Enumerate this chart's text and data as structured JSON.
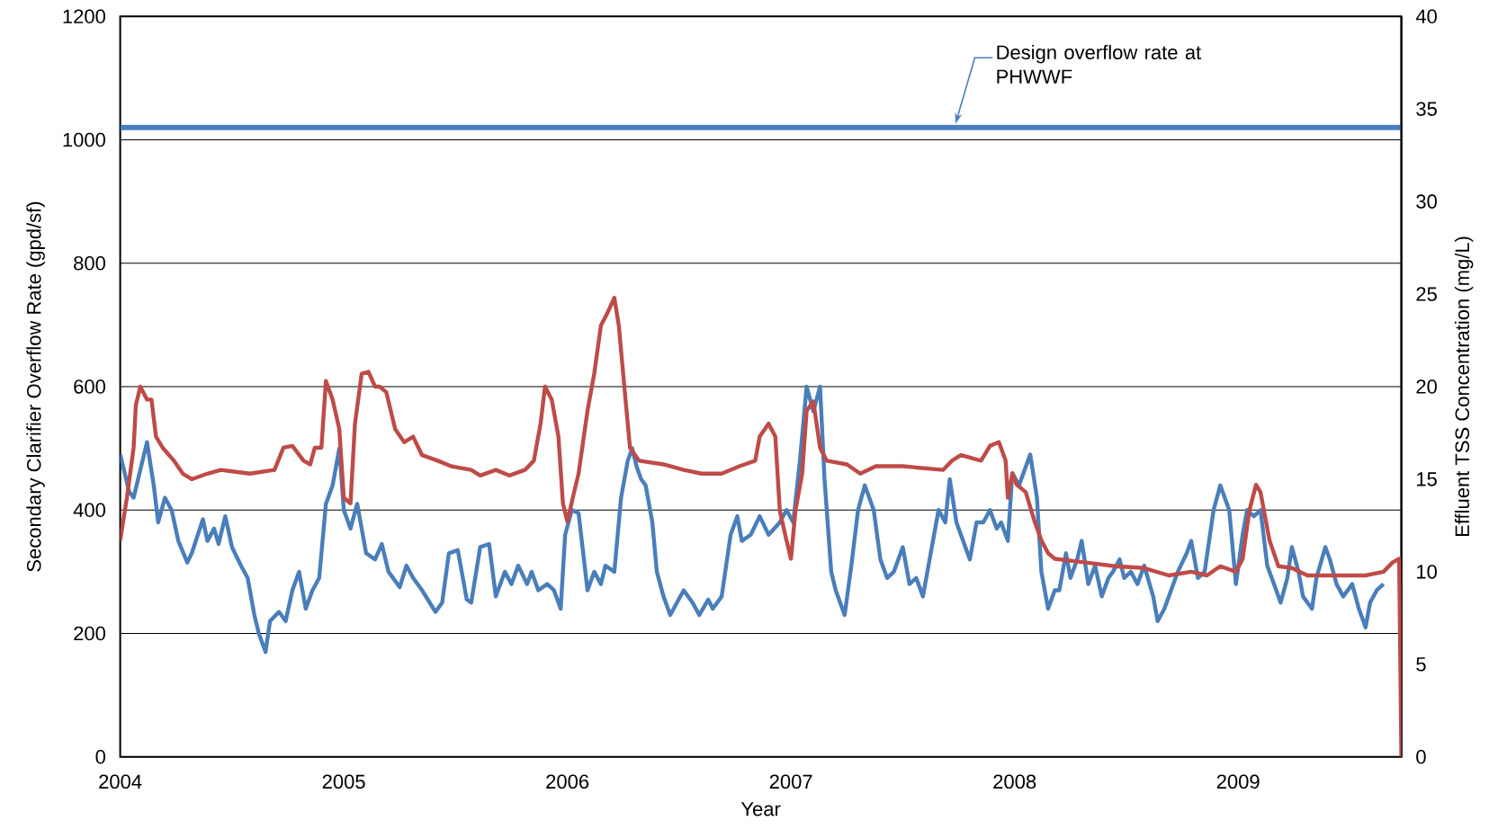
{
  "chart_data": {
    "type": "line",
    "xlabel": "Year",
    "ylabel": "Secondary Clarifier Overflow Rate (gpd/sf)",
    "y2label": "Effluent TSS Concentration (mg/L)",
    "xlim": [
      2004,
      2009.73
    ],
    "xticks": [
      2004,
      2005,
      2006,
      2007,
      2008,
      2009
    ],
    "ylim": [
      0,
      1200
    ],
    "yticks": [
      0,
      200,
      400,
      600,
      800,
      1000,
      1200
    ],
    "y2lim": [
      0,
      40
    ],
    "y2ticks": [
      0,
      5,
      10,
      15,
      20,
      25,
      30,
      35,
      40
    ],
    "grid": "y",
    "marker": "none",
    "line_style": "solid",
    "ref_lines": [
      {
        "axis": "y",
        "value": 1020,
        "label": "Design overflow rate at PHWWF",
        "color": "#4a7ebb"
      }
    ],
    "series": [
      {
        "color": "#4a7ebb",
        "x": [
          2004.0,
          2004.04,
          2004.06,
          2004.1,
          2004.12,
          2004.15,
          2004.17,
          2004.2,
          2004.23,
          2004.26,
          2004.3,
          2004.32,
          2004.37,
          2004.39,
          2004.42,
          2004.44,
          2004.47,
          2004.5,
          2004.54,
          2004.57,
          2004.6,
          2004.62,
          2004.65,
          2004.67,
          2004.71,
          2004.74,
          2004.77,
          2004.8,
          2004.83,
          2004.86,
          2004.89,
          2004.92,
          2004.95,
          2004.98,
          2005.0,
          2005.03,
          2005.06,
          2005.1,
          2005.14,
          2005.17,
          2005.2,
          2005.25,
          2005.28,
          2005.31,
          2005.35,
          2005.41,
          2005.44,
          2005.47,
          2005.51,
          2005.55,
          2005.57,
          2005.61,
          2005.65,
          2005.68,
          2005.72,
          2005.75,
          2005.78,
          2005.82,
          2005.84,
          2005.87,
          2005.91,
          2005.94,
          2005.97,
          2005.99,
          2006.02,
          2006.05,
          2006.09,
          2006.12,
          2006.15,
          2006.17,
          2006.21,
          2006.24,
          2006.27,
          2006.29,
          2006.31,
          2006.33,
          2006.35,
          2006.38,
          2006.4,
          2006.43,
          2006.46,
          2006.49,
          2006.52,
          2006.56,
          2006.59,
          2006.63,
          2006.65,
          2006.69,
          2006.73,
          2006.76,
          2006.78,
          2006.82,
          2006.86,
          2006.9,
          2006.95,
          2006.98,
          2007.01,
          2007.04,
          2007.07,
          2007.1,
          2007.13,
          2007.15,
          2007.18,
          2007.2,
          2007.24,
          2007.27,
          2007.3,
          2007.33,
          2007.37,
          2007.4,
          2007.43,
          2007.46,
          2007.5,
          2007.53,
          2007.56,
          2007.59,
          2007.62,
          2007.66,
          2007.69,
          2007.71,
          2007.74,
          2007.76,
          2007.8,
          2007.83,
          2007.86,
          2007.89,
          2007.92,
          2007.94,
          2007.97,
          2007.99,
          2008.02,
          2008.05,
          2008.07,
          2008.1,
          2008.12,
          2008.15,
          2008.18,
          2008.2,
          2008.23,
          2008.25,
          2008.28,
          2008.3,
          2008.33,
          2008.36,
          2008.39,
          2008.42,
          2008.44,
          2008.47,
          2008.49,
          2008.52,
          2008.55,
          2008.58,
          2008.62,
          2008.64,
          2008.67,
          2008.7,
          2008.73,
          2008.77,
          2008.79,
          2008.82,
          2008.85,
          2008.89,
          2008.92,
          2008.96,
          2008.99,
          2009.02,
          2009.04,
          2009.07,
          2009.1,
          2009.13,
          2009.16,
          2009.19,
          2009.22,
          2009.24,
          2009.27,
          2009.29,
          2009.33,
          2009.35,
          2009.39,
          2009.41,
          2009.44,
          2009.47,
          2009.51,
          2009.54,
          2009.57,
          2009.59,
          2009.62,
          2009.65
        ],
        "values": [
          490,
          430,
          420,
          480,
          510,
          440,
          380,
          420,
          400,
          350,
          315,
          330,
          385,
          350,
          370,
          345,
          390,
          340,
          310,
          290,
          230,
          200,
          170,
          220,
          235,
          220,
          270,
          300,
          240,
          270,
          290,
          410,
          440,
          500,
          400,
          370,
          410,
          330,
          320,
          345,
          300,
          275,
          310,
          290,
          270,
          235,
          250,
          330,
          335,
          255,
          250,
          340,
          345,
          260,
          300,
          280,
          310,
          280,
          300,
          270,
          280,
          270,
          240,
          360,
          400,
          395,
          270,
          300,
          280,
          310,
          300,
          420,
          480,
          500,
          470,
          450,
          440,
          380,
          300,
          260,
          230,
          250,
          270,
          250,
          230,
          255,
          240,
          260,
          360,
          390,
          350,
          360,
          390,
          360,
          380,
          400,
          380,
          480,
          600,
          560,
          600,
          450,
          300,
          270,
          230,
          310,
          400,
          440,
          400,
          320,
          290,
          300,
          340,
          280,
          290,
          260,
          320,
          400,
          380,
          450,
          380,
          360,
          320,
          380,
          380,
          400,
          370,
          380,
          350,
          460,
          440,
          470,
          490,
          420,
          300,
          240,
          270,
          270,
          330,
          290,
          320,
          350,
          280,
          310,
          260,
          290,
          300,
          320,
          290,
          300,
          280,
          310,
          260,
          220,
          240,
          270,
          300,
          330,
          350,
          290,
          300,
          400,
          440,
          400,
          280,
          360,
          400,
          390,
          400,
          310,
          280,
          250,
          290,
          340,
          300,
          260,
          240,
          290,
          340,
          320,
          280,
          260,
          280,
          240,
          210,
          250,
          270,
          280
        ]
      },
      {
        "color": "#be4b48",
        "axis": "y2",
        "x": [
          2004.0,
          2004.03,
          2004.06,
          2004.07,
          2004.09,
          2004.12,
          2004.14,
          2004.16,
          2004.19,
          2004.24,
          2004.28,
          2004.32,
          2004.39,
          2004.45,
          2004.58,
          2004.69,
          2004.73,
          2004.77,
          2004.82,
          2004.85,
          2004.87,
          2004.9,
          2004.92,
          2004.95,
          2004.98,
          2005.0,
          2005.03,
          2005.05,
          2005.08,
          2005.11,
          2005.14,
          2005.16,
          2005.19,
          2005.23,
          2005.27,
          2005.31,
          2005.35,
          2005.42,
          2005.48,
          2005.57,
          2005.61,
          2005.68,
          2005.74,
          2005.81,
          2005.85,
          2005.88,
          2005.9,
          2005.93,
          2005.96,
          2005.98,
          2006.0,
          2006.03,
          2006.05,
          2006.09,
          2006.12,
          2006.15,
          2006.18,
          2006.21,
          2006.23,
          2006.26,
          2006.28,
          2006.32,
          2006.43,
          2006.52,
          2006.6,
          2006.69,
          2006.77,
          2006.84,
          2006.86,
          2006.9,
          2006.93,
          2006.95,
          2006.98,
          2007.0,
          2007.02,
          2007.05,
          2007.07,
          2007.1,
          2007.13,
          2007.16,
          2007.25,
          2007.31,
          2007.38,
          2007.5,
          2007.68,
          2007.72,
          2007.76,
          2007.85,
          2007.89,
          2007.93,
          2007.96,
          2007.97,
          2007.99,
          2008.01,
          2008.05,
          2008.09,
          2008.12,
          2008.15,
          2008.18,
          2008.32,
          2008.45,
          2008.58,
          2008.69,
          2008.79,
          2008.86,
          2008.92,
          2008.99,
          2009.02,
          2009.05,
          2009.08,
          2009.1,
          2009.14,
          2009.18,
          2009.24,
          2009.31,
          2009.44,
          2009.57,
          2009.65,
          2009.69,
          2009.72,
          2009.73
        ],
        "values": [
          11.7,
          14,
          16.7,
          19,
          20,
          19.3,
          19.3,
          17.3,
          16.7,
          16,
          15.3,
          15,
          15.3,
          15.5,
          15.3,
          15.5,
          16.7,
          16.8,
          16,
          15.8,
          16.7,
          16.7,
          20.3,
          19.3,
          17.7,
          14,
          13.7,
          18,
          20.7,
          20.8,
          20,
          20,
          19.7,
          17.7,
          17,
          17.3,
          16.3,
          16,
          15.7,
          15.5,
          15.2,
          15.5,
          15.2,
          15.5,
          16,
          18,
          20,
          19.3,
          17.3,
          13.7,
          12.7,
          14.3,
          15.3,
          18.7,
          20.7,
          23.3,
          24,
          24.8,
          23.3,
          19.3,
          16.7,
          16,
          15.8,
          15.5,
          15.3,
          15.3,
          15.7,
          16,
          17.3,
          18,
          17.3,
          13.3,
          11.7,
          10.7,
          13.3,
          15.3,
          18.7,
          19.2,
          16.7,
          16,
          15.8,
          15.3,
          15.7,
          15.7,
          15.5,
          16,
          16.3,
          16,
          16.8,
          17,
          16,
          14,
          15.3,
          14.7,
          14.3,
          12.7,
          11.7,
          11,
          10.7,
          10.5,
          10.3,
          10.2,
          9.8,
          10,
          9.8,
          10.3,
          10,
          10.7,
          13.3,
          14.7,
          14.3,
          11.7,
          10.3,
          10.2,
          9.8,
          9.8,
          9.8,
          10,
          10.5,
          10.7,
          0
        ]
      }
    ]
  }
}
